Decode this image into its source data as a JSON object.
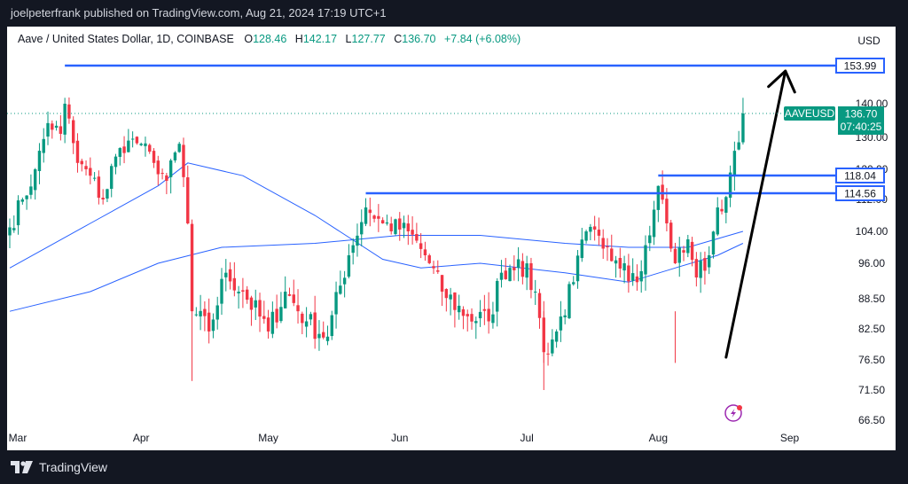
{
  "header": {
    "text": "joelpeterfrank published on TradingView.com, Aug 21, 2024 17:19 UTC+1"
  },
  "footer": {
    "brand": "TradingView"
  },
  "colors": {
    "up": "#089981",
    "down": "#f23645",
    "ma": "#2962ff",
    "level": "#2962ff",
    "arrow": "#000000",
    "price_badge": "#089981"
  },
  "chart_data": {
    "type": "candlestick",
    "title": "Aave / United States Dollar, 1D, COINBASE",
    "ohlc_label": {
      "o_label": "O",
      "o": "128.46",
      "h_label": "H",
      "h": "142.17",
      "l_label": "L",
      "l": "127.77",
      "c_label": "C",
      "c": "136.70",
      "change": "+7.84 (+6.08%)"
    },
    "currency": "USD",
    "symbol": "AAVEUSD",
    "last_price": "136.70",
    "countdown": "07:40:25",
    "y_ticks": [
      "140.00",
      "130.00",
      "120.00",
      "112.00",
      "104.00",
      "96.00",
      "88.50",
      "82.50",
      "76.50",
      "71.50",
      "66.50"
    ],
    "x_ticks": [
      "Mar",
      "Apr",
      "May",
      "Jun",
      "Jul",
      "Aug",
      "Sep"
    ],
    "horizontal_levels": [
      "153.99",
      "118.04",
      "114.56"
    ],
    "price_anchors": [
      {
        "date": "2024-03-01",
        "close": 105
      },
      {
        "date": "2024-03-04",
        "close": 112
      },
      {
        "date": "2024-03-07",
        "close": 120
      },
      {
        "date": "2024-03-10",
        "close": 134
      },
      {
        "date": "2024-03-13",
        "close": 131
      },
      {
        "date": "2024-03-14",
        "close": 140
      },
      {
        "date": "2024-03-17",
        "close": 122
      },
      {
        "date": "2024-03-20",
        "close": 118
      },
      {
        "date": "2024-03-23",
        "close": 112
      },
      {
        "date": "2024-03-26",
        "close": 124
      },
      {
        "date": "2024-03-29",
        "close": 129
      },
      {
        "date": "2024-04-01",
        "close": 128
      },
      {
        "date": "2024-04-04",
        "close": 122
      },
      {
        "date": "2024-04-07",
        "close": 117
      },
      {
        "date": "2024-04-10",
        "close": 128
      },
      {
        "date": "2024-04-12",
        "close": 106
      },
      {
        "date": "2024-04-13",
        "close": 86
      },
      {
        "date": "2024-04-17",
        "close": 82
      },
      {
        "date": "2024-04-21",
        "close": 94
      },
      {
        "date": "2024-04-25",
        "close": 90
      },
      {
        "date": "2024-05-01",
        "close": 82
      },
      {
        "date": "2024-05-05",
        "close": 90
      },
      {
        "date": "2024-05-10",
        "close": 84
      },
      {
        "date": "2024-05-15",
        "close": 81
      },
      {
        "date": "2024-05-20",
        "close": 98
      },
      {
        "date": "2024-05-24",
        "close": 110
      },
      {
        "date": "2024-05-28",
        "close": 106
      },
      {
        "date": "2024-06-03",
        "close": 104
      },
      {
        "date": "2024-06-07",
        "close": 98
      },
      {
        "date": "2024-06-11",
        "close": 90
      },
      {
        "date": "2024-06-17",
        "close": 85
      },
      {
        "date": "2024-06-22",
        "close": 84
      },
      {
        "date": "2024-06-25",
        "close": 94
      },
      {
        "date": "2024-06-29",
        "close": 97
      },
      {
        "date": "2024-07-03",
        "close": 90
      },
      {
        "date": "2024-07-05",
        "close": 78
      },
      {
        "date": "2024-07-08",
        "close": 82
      },
      {
        "date": "2024-07-12",
        "close": 92
      },
      {
        "date": "2024-07-15",
        "close": 104
      },
      {
        "date": "2024-07-20",
        "close": 100
      },
      {
        "date": "2024-07-24",
        "close": 96
      },
      {
        "date": "2024-07-27",
        "close": 92
      },
      {
        "date": "2024-07-30",
        "close": 103
      },
      {
        "date": "2024-08-01",
        "close": 116
      },
      {
        "date": "2024-08-03",
        "close": 106
      },
      {
        "date": "2024-08-05",
        "close": 96
      },
      {
        "date": "2024-08-08",
        "close": 102
      },
      {
        "date": "2024-08-10",
        "close": 93
      },
      {
        "date": "2024-08-13",
        "close": 98
      },
      {
        "date": "2024-08-15",
        "close": 110
      },
      {
        "date": "2024-08-17",
        "close": 113
      },
      {
        "date": "2024-08-18",
        "close": 119
      },
      {
        "date": "2024-08-20",
        "close": 128.46
      },
      {
        "date": "2024-08-21",
        "close": 136.7
      }
    ],
    "ma_fast": [
      {
        "date": "2024-03-01",
        "value": 95
      },
      {
        "date": "2024-03-20",
        "value": 106
      },
      {
        "date": "2024-04-05",
        "value": 116
      },
      {
        "date": "2024-04-12",
        "value": 122
      },
      {
        "date": "2024-04-25",
        "value": 118
      },
      {
        "date": "2024-05-12",
        "value": 108
      },
      {
        "date": "2024-05-28",
        "value": 97
      },
      {
        "date": "2024-06-06",
        "value": 95
      },
      {
        "date": "2024-06-20",
        "value": 96
      },
      {
        "date": "2024-07-10",
        "value": 94
      },
      {
        "date": "2024-07-25",
        "value": 92
      },
      {
        "date": "2024-08-05",
        "value": 95
      },
      {
        "date": "2024-08-15",
        "value": 98
      },
      {
        "date": "2024-08-21",
        "value": 101
      }
    ],
    "ma_slow": [
      {
        "date": "2024-03-01",
        "value": 86
      },
      {
        "date": "2024-03-20",
        "value": 90
      },
      {
        "date": "2024-04-05",
        "value": 96
      },
      {
        "date": "2024-04-20",
        "value": 100
      },
      {
        "date": "2024-05-12",
        "value": 101
      },
      {
        "date": "2024-06-01",
        "value": 103
      },
      {
        "date": "2024-06-20",
        "value": 103
      },
      {
        "date": "2024-07-10",
        "value": 101
      },
      {
        "date": "2024-07-25",
        "value": 100
      },
      {
        "date": "2024-08-08",
        "value": 100
      },
      {
        "date": "2024-08-21",
        "value": 104
      }
    ],
    "arrow": {
      "from": {
        "date": "2024-08-17",
        "price": 77
      },
      "to": {
        "date": "2024-08-31",
        "price": 152
      }
    },
    "grid": false
  }
}
